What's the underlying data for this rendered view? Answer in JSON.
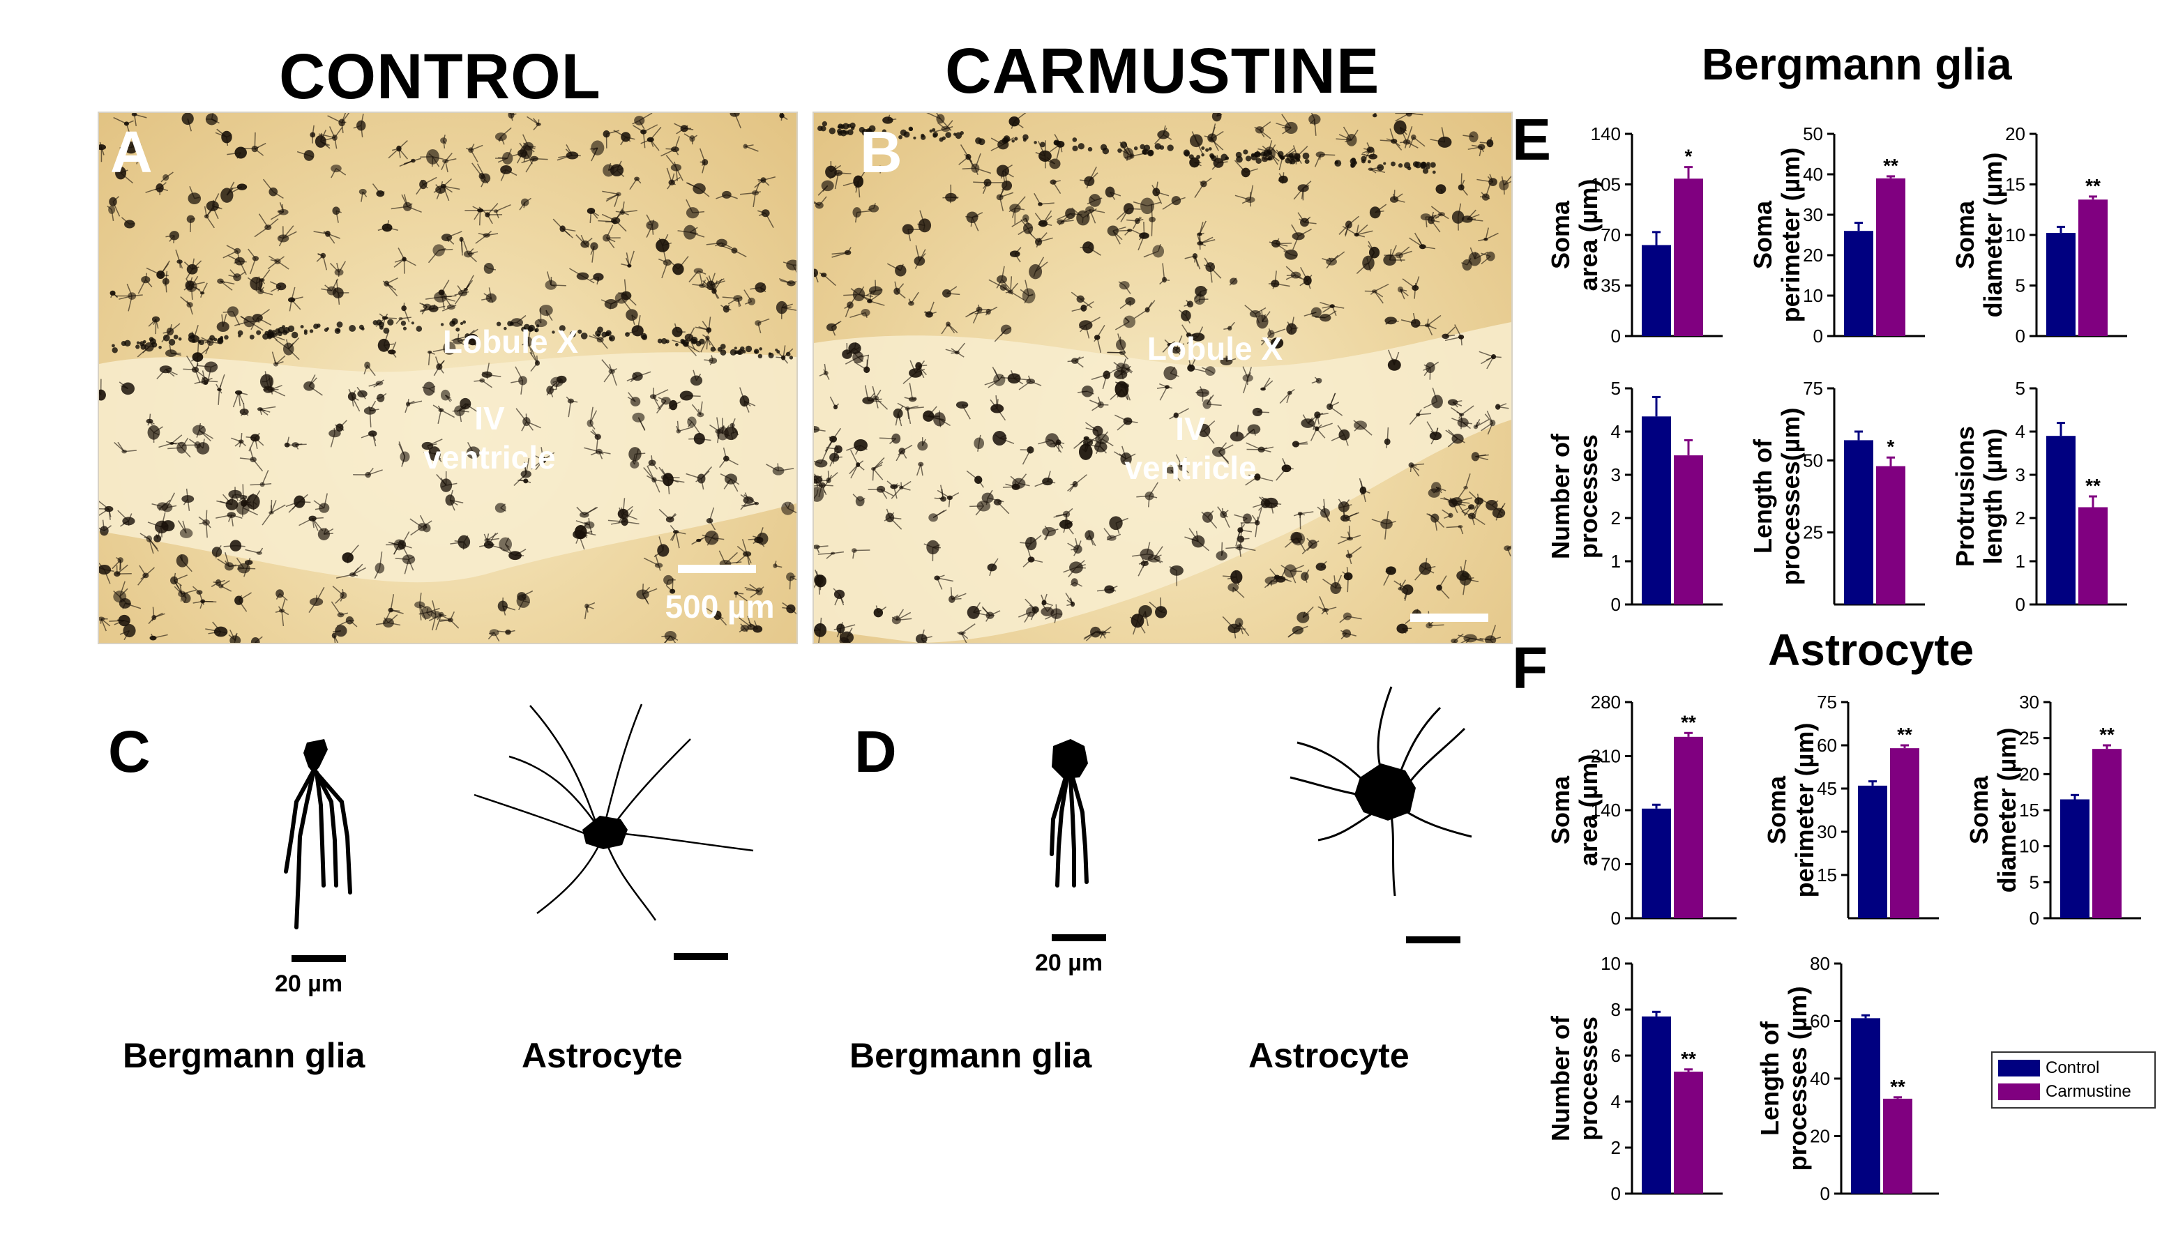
{
  "headers": {
    "control": "CONTROL",
    "carmustine": "CARMUSTINE"
  },
  "panel_letters": {
    "a": "A",
    "b": "B",
    "c": "C",
    "d": "D",
    "e": "E",
    "f": "F"
  },
  "micrographs": {
    "a": {
      "region": "Lobule X",
      "ventricle_line1": "IV",
      "ventricle_line2": "ventricle",
      "scale": "500 µm"
    },
    "b": {
      "region": "Lobule X",
      "ventricle_line1": "IV",
      "ventricle_line2": "ventricle"
    }
  },
  "cells": {
    "c": {
      "bergmann_scale": "20 µm",
      "bergmann_label": "Bergmann glia",
      "astro_label": "Astrocyte"
    },
    "d": {
      "bergmann_scale": "20 µm",
      "bergmann_label": "Bergmann glia",
      "astro_label": "Astrocyte"
    }
  },
  "sections": {
    "e": "Bergmann glia",
    "f": "Astrocyte"
  },
  "legend": {
    "items": [
      {
        "label": "Control",
        "color": "#000080"
      },
      {
        "label": "Carmustine",
        "color": "#800080"
      }
    ]
  },
  "chart_data": [
    {
      "id": "e1",
      "type": "bar",
      "ylabel": [
        "Soma",
        "area (µm)"
      ],
      "categories": [
        "Control",
        "Carmustine"
      ],
      "values": [
        63,
        109
      ],
      "errors": [
        9,
        8
      ],
      "ylim": [
        0,
        140
      ],
      "yticks": [
        0,
        35,
        70,
        105,
        140
      ],
      "ytick_labels": [
        "0",
        "35",
        "70",
        "105",
        "140"
      ],
      "sig": "*"
    },
    {
      "id": "e2",
      "type": "bar",
      "ylabel": [
        "Soma",
        "perimeter (µm)"
      ],
      "categories": [
        "Control",
        "Carmustine"
      ],
      "values": [
        26,
        39
      ],
      "errors": [
        2,
        0.5
      ],
      "ylim": [
        0,
        50
      ],
      "yticks": [
        0,
        10,
        20,
        30,
        40,
        50
      ],
      "ytick_labels": [
        "0",
        "10",
        "20",
        "30",
        "40",
        "50"
      ],
      "sig": "**"
    },
    {
      "id": "e3",
      "type": "bar",
      "ylabel": [
        "Soma",
        "diameter (µm)"
      ],
      "categories": [
        "Control",
        "Carmustine"
      ],
      "values": [
        10.2,
        13.5
      ],
      "errors": [
        0.6,
        0.3
      ],
      "ylim": [
        0,
        20
      ],
      "yticks": [
        0,
        5,
        10,
        15,
        20
      ],
      "ytick_labels": [
        "0",
        "5",
        "10",
        "15",
        "20"
      ],
      "sig": "**"
    },
    {
      "id": "e4",
      "type": "bar",
      "ylabel": [
        "Number of",
        "processes"
      ],
      "categories": [
        "Control",
        "Carmustine"
      ],
      "values": [
        4.35,
        3.45
      ],
      "errors": [
        0.45,
        0.35
      ],
      "ylim": [
        0,
        5
      ],
      "yticks": [
        0,
        1,
        2,
        3,
        4,
        5
      ],
      "ytick_labels": [
        "0",
        "1",
        "2",
        "3",
        "4",
        "5"
      ],
      "sig": ""
    },
    {
      "id": "e5",
      "type": "bar",
      "ylabel": [
        "Length of",
        "processes(µm)"
      ],
      "categories": [
        "Control",
        "Carmustine"
      ],
      "values": [
        57,
        48
      ],
      "errors": [
        3,
        3
      ],
      "ylim": [
        0,
        75
      ],
      "yticks": [
        25,
        50,
        75
      ],
      "ytick_labels": [
        "25",
        "50",
        "75"
      ],
      "sig": "*"
    },
    {
      "id": "e6",
      "type": "bar",
      "ylabel": [
        "Protrusions",
        "length (µm)"
      ],
      "categories": [
        "Control",
        "Carmustine"
      ],
      "values": [
        3.9,
        2.25
      ],
      "errors": [
        0.3,
        0.25
      ],
      "ylim": [
        0,
        5
      ],
      "yticks": [
        0,
        1,
        2,
        3,
        4,
        5
      ],
      "ytick_labels": [
        "0",
        "1",
        "2",
        "3",
        "4",
        "5"
      ],
      "sig": "**"
    },
    {
      "id": "f1",
      "type": "bar",
      "ylabel": [
        "Soma",
        "area (µm)"
      ],
      "categories": [
        "Control",
        "Carmustine"
      ],
      "values": [
        142,
        235
      ],
      "errors": [
        5,
        5
      ],
      "ylim": [
        0,
        280
      ],
      "yticks": [
        0,
        70,
        140,
        210,
        280
      ],
      "ytick_labels": [
        "0",
        "70",
        "140",
        "210",
        "280"
      ],
      "sig": "**"
    },
    {
      "id": "f2",
      "type": "bar",
      "ylabel": [
        "Soma",
        "perimeter (µm)"
      ],
      "categories": [
        "Control",
        "Carmustine"
      ],
      "values": [
        46,
        59
      ],
      "errors": [
        1.5,
        1
      ],
      "ylim": [
        0,
        75
      ],
      "yticks": [
        15,
        30,
        45,
        60,
        75
      ],
      "ytick_labels": [
        "15",
        "30",
        "45",
        "60",
        "75"
      ],
      "sig": "**"
    },
    {
      "id": "f3",
      "type": "bar",
      "ylabel": [
        "Soma",
        "diameter (µm)"
      ],
      "categories": [
        "Control",
        "Carmustine"
      ],
      "values": [
        16.5,
        23.5
      ],
      "errors": [
        0.6,
        0.5
      ],
      "ylim": [
        0,
        30
      ],
      "yticks": [
        0,
        5,
        10,
        15,
        20,
        25,
        30
      ],
      "ytick_labels": [
        "0",
        "5",
        "10",
        "15",
        "20",
        "25",
        "30"
      ],
      "sig": "**"
    },
    {
      "id": "f4",
      "type": "bar",
      "ylabel": [
        "Number of",
        "processes"
      ],
      "categories": [
        "Control",
        "Carmustine"
      ],
      "values": [
        7.7,
        5.3
      ],
      "errors": [
        0.2,
        0.1
      ],
      "ylim": [
        0,
        10
      ],
      "yticks": [
        0,
        2,
        4,
        6,
        8,
        10
      ],
      "ytick_labels": [
        "0",
        "2",
        "4",
        "6",
        "8",
        "10"
      ],
      "sig": "**"
    },
    {
      "id": "f5",
      "type": "bar",
      "ylabel": [
        "Length of",
        "processes (µm)"
      ],
      "categories": [
        "Control",
        "Carmustine"
      ],
      "values": [
        61,
        33
      ],
      "errors": [
        1,
        0.5
      ],
      "ylim": [
        0,
        80
      ],
      "yticks": [
        0,
        20,
        40,
        60,
        80
      ],
      "ytick_labels": [
        "0",
        "20",
        "40",
        "60",
        "80"
      ],
      "sig": "**"
    }
  ]
}
